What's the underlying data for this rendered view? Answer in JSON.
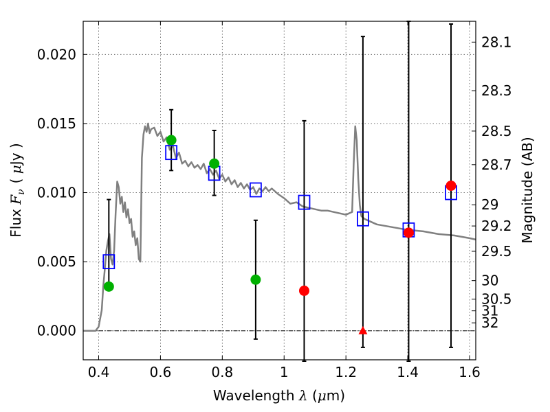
{
  "chart_data": {
    "type": "scatter",
    "title": "",
    "xlabel": "Wavelength  λ (μm)",
    "ylabel": "Flux  F_ν  ( μJy )",
    "ylabel_parts": {
      "prefix": "Flux  ",
      "symbol": "F",
      "subscript": "ν",
      "unit_open": "( ",
      "unit_mu": "μ",
      "unit_rest": "Jy )"
    },
    "xlabel_parts": {
      "prefix": "Wavelength  ",
      "symbol": "λ",
      "unit_open": " (",
      "unit_mu": "μ",
      "unit_rest": "m)"
    },
    "y2label": "Magnitude (AB)",
    "xlim": [
      0.35,
      1.62
    ],
    "ylim": [
      -0.0021,
      0.0224
    ],
    "grid": true,
    "x_ticks": [
      {
        "value": 0.4,
        "label": "0.4"
      },
      {
        "value": 0.6,
        "label": "0.6"
      },
      {
        "value": 0.8,
        "label": "0.8"
      },
      {
        "value": 1.0,
        "label": "1"
      },
      {
        "value": 1.2,
        "label": "1.2"
      },
      {
        "value": 1.4,
        "label": "1.4"
      },
      {
        "value": 1.6,
        "label": "1.6"
      }
    ],
    "y_ticks": [
      {
        "value": 0.0,
        "label": "0.000"
      },
      {
        "value": 0.005,
        "label": "0.005"
      },
      {
        "value": 0.01,
        "label": "0.010"
      },
      {
        "value": 0.015,
        "label": "0.015"
      },
      {
        "value": 0.02,
        "label": "0.020"
      }
    ],
    "mag_ticks": [
      {
        "mag": 28.1,
        "label": "28.1"
      },
      {
        "mag": 28.3,
        "label": "28.3"
      },
      {
        "mag": 28.5,
        "label": "28.5"
      },
      {
        "mag": 28.7,
        "label": "28.7"
      },
      {
        "mag": 29.0,
        "label": "29"
      },
      {
        "mag": 29.2,
        "label": "29.2"
      },
      {
        "mag": 29.5,
        "label": "29.5"
      },
      {
        "mag": 30.0,
        "label": "30"
      },
      {
        "mag": 30.5,
        "label": "30.5"
      },
      {
        "mag": 31.0,
        "label": "31"
      },
      {
        "mag": 32.0,
        "label": "32"
      }
    ],
    "model_sed": {
      "color": "#808080",
      "x": [
        0.35,
        0.39,
        0.4,
        0.41,
        0.415,
        0.42,
        0.425,
        0.43,
        0.435,
        0.44,
        0.445,
        0.45,
        0.455,
        0.46,
        0.465,
        0.47,
        0.475,
        0.48,
        0.485,
        0.49,
        0.495,
        0.5,
        0.505,
        0.51,
        0.515,
        0.52,
        0.525,
        0.53,
        0.535,
        0.54,
        0.545,
        0.55,
        0.555,
        0.56,
        0.565,
        0.57,
        0.58,
        0.59,
        0.6,
        0.61,
        0.62,
        0.63,
        0.64,
        0.65,
        0.66,
        0.67,
        0.68,
        0.69,
        0.7,
        0.71,
        0.72,
        0.73,
        0.74,
        0.75,
        0.76,
        0.77,
        0.78,
        0.79,
        0.8,
        0.81,
        0.82,
        0.83,
        0.84,
        0.85,
        0.86,
        0.87,
        0.88,
        0.89,
        0.9,
        0.91,
        0.92,
        0.93,
        0.94,
        0.95,
        0.96,
        0.98,
        1.0,
        1.02,
        1.04,
        1.06,
        1.08,
        1.1,
        1.12,
        1.14,
        1.16,
        1.18,
        1.2,
        1.22,
        1.225,
        1.23,
        1.235,
        1.24,
        1.245,
        1.25,
        1.26,
        1.28,
        1.3,
        1.35,
        1.4,
        1.45,
        1.5,
        1.55,
        1.6,
        1.62
      ],
      "y": [
        0.0,
        0.0,
        0.0003,
        0.0015,
        0.0032,
        0.0045,
        0.0058,
        0.0065,
        0.007,
        0.0052,
        0.0048,
        0.0058,
        0.0085,
        0.0108,
        0.0104,
        0.0092,
        0.0097,
        0.0086,
        0.0093,
        0.0082,
        0.0088,
        0.0078,
        0.0081,
        0.0068,
        0.0072,
        0.0062,
        0.0067,
        0.0052,
        0.005,
        0.0125,
        0.0142,
        0.0148,
        0.0144,
        0.015,
        0.0143,
        0.0146,
        0.0147,
        0.0141,
        0.0144,
        0.0137,
        0.014,
        0.0131,
        0.0134,
        0.0125,
        0.0129,
        0.0121,
        0.0123,
        0.0119,
        0.0122,
        0.0118,
        0.012,
        0.0117,
        0.0121,
        0.0114,
        0.0117,
        0.0113,
        0.0116,
        0.011,
        0.0113,
        0.0108,
        0.0111,
        0.0106,
        0.0109,
        0.0104,
        0.0107,
        0.0103,
        0.0106,
        0.0102,
        0.0104,
        0.0099,
        0.0103,
        0.0101,
        0.0104,
        0.0101,
        0.0103,
        0.0099,
        0.0096,
        0.0092,
        0.0093,
        0.009,
        0.0089,
        0.0088,
        0.0087,
        0.0087,
        0.0086,
        0.0085,
        0.0084,
        0.0086,
        0.012,
        0.0148,
        0.0138,
        0.011,
        0.0091,
        0.0083,
        0.0081,
        0.0079,
        0.0077,
        0.0075,
        0.0073,
        0.0072,
        0.007,
        0.0069,
        0.0067,
        0.0066
      ]
    },
    "model_points": {
      "name": "",
      "color": "#0000ff",
      "x": [
        0.433,
        0.635,
        0.774,
        0.908,
        1.065,
        1.255,
        1.403,
        1.54
      ],
      "y": [
        0.005,
        0.0129,
        0.0114,
        0.0102,
        0.0093,
        0.0081,
        0.0073,
        0.01
      ]
    },
    "detections": {
      "color": "#00b000",
      "x": [
        0.433,
        0.635,
        0.774,
        0.908
      ],
      "y": [
        0.0032,
        0.0138,
        0.0121,
        0.0037
      ],
      "yerr_low": [
        0.0032,
        0.0116,
        0.0098,
        -0.0006
      ],
      "yerr_high": [
        0.0095,
        0.016,
        0.0145,
        0.008
      ]
    },
    "nondetections": {
      "color": "#ff0000",
      "x": [
        1.065,
        1.403,
        1.54
      ],
      "y": [
        0.0029,
        0.0071,
        0.0105
      ],
      "yerr_low": [
        -0.0022,
        -0.0022,
        -0.0012
      ],
      "yerr_high": [
        0.0152,
        0.0224,
        0.0222
      ]
    },
    "upper_limit": {
      "color": "#ff0000",
      "x": 1.255,
      "y": 0.0,
      "yerr_low": -0.0012,
      "yerr_high": 0.0213
    }
  }
}
